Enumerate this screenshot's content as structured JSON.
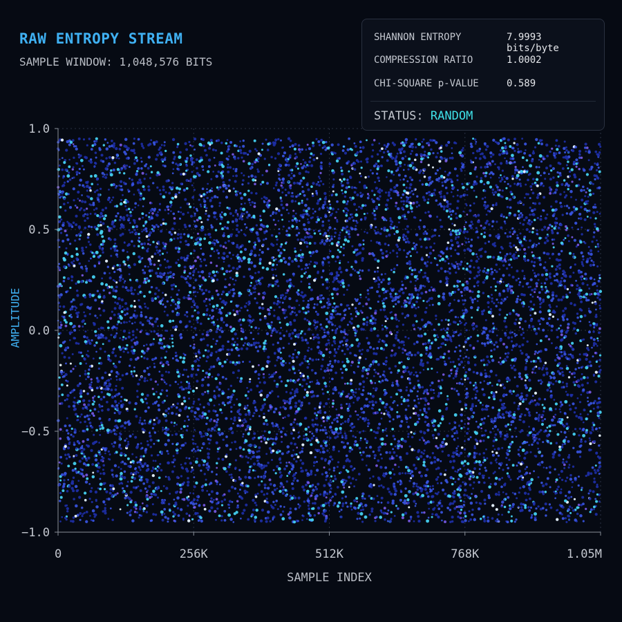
{
  "header": {
    "title": "RAW ENTROPY STREAM",
    "subtitle": "SAMPLE WINDOW: 1,048,576 BITS"
  },
  "stats": {
    "shannon_label": "SHANNON ENTROPY",
    "shannon_value": "7.9993 bits/byte",
    "compression_label": "COMPRESSION RATIO",
    "compression_value": "1.0002",
    "chi_label": "CHI-SQUARE p-VALUE",
    "chi_value": "0.589",
    "status_label": "STATUS:",
    "status_value": "RANDOM"
  },
  "colors": {
    "accent": "#3fb0f2",
    "status": "#3fe0e8",
    "point_dark": "#1e2fa8",
    "point_mid": "#3a55e6",
    "point_light": "#45d0f0",
    "point_white": "#e8f4ff",
    "point_violet": "#7a5ae8"
  },
  "chart_data": {
    "type": "scatter",
    "title": "",
    "xlabel": "SAMPLE INDEX",
    "ylabel": "AMPLITUDE",
    "xlim": [
      0,
      1048576
    ],
    "ylim": [
      -1.0,
      1.0
    ],
    "x_ticks": [
      0,
      262144,
      524288,
      786432,
      1048576
    ],
    "x_tick_labels": [
      "0",
      "256K",
      "512K",
      "768K",
      "1.05M"
    ],
    "y_ticks": [
      1.0,
      0.5,
      0.0,
      -0.5,
      -1.0
    ],
    "y_tick_labels": [
      "1.0",
      "0.5",
      "0.0",
      "−0.5",
      "−1.0"
    ],
    "grid": true,
    "series": [
      {
        "distribution": "uniform random noise",
        "approx_point_count": 9000,
        "y_range": [
          -0.95,
          0.95
        ]
      }
    ]
  }
}
